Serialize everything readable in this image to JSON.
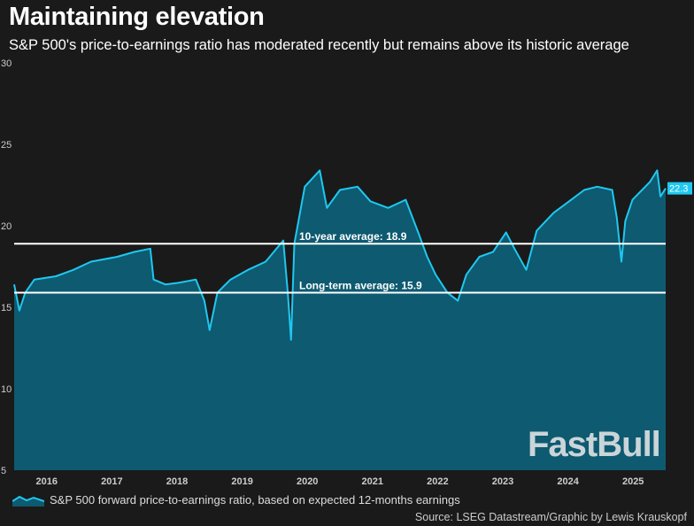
{
  "title": "Maintaining elevation",
  "subtitle": "S&P 500's price-to-earnings ratio has moderated recently but remains above its historic average",
  "legend_label": "S&P 500 forward price-to-earnings ratio, based on expected 12-months earnings",
  "source": "Source: LSEG Datastream/Graphic by Lewis Krauskopf",
  "watermark": "FastBull",
  "colors": {
    "line": "#1fc8f0",
    "fill": "#0e5a70",
    "ref": "#ffffff",
    "bg": "#1a1a1a"
  },
  "chart_data": {
    "type": "area",
    "title": "Maintaining elevation",
    "xlabel": "",
    "ylabel": "",
    "xlim": [
      2016.0,
      2026.0
    ],
    "ylim": [
      5,
      30
    ],
    "yticks": [
      5,
      10,
      15,
      20,
      25,
      30
    ],
    "xticks": [
      {
        "label": "2016",
        "value": 2016.5
      },
      {
        "label": "2017",
        "value": 2017.5
      },
      {
        "label": "2018",
        "value": 2018.5
      },
      {
        "label": "2019",
        "value": 2019.5
      },
      {
        "label": "2020",
        "value": 2020.5
      },
      {
        "label": "2021",
        "value": 2021.5
      },
      {
        "label": "2022",
        "value": 2022.5
      },
      {
        "label": "2023",
        "value": 2023.5
      },
      {
        "label": "2024",
        "value": 2024.5
      },
      {
        "label": "2025",
        "value": 2025.5
      }
    ],
    "series": [
      {
        "name": "S&P 500 forward price-to-earnings ratio, based on expected 12-months earnings",
        "x": [
          2016.0,
          2016.08,
          2016.17,
          2016.31,
          2016.64,
          2016.91,
          2017.18,
          2017.58,
          2017.85,
          2018.09,
          2018.14,
          2018.32,
          2018.52,
          2018.79,
          2018.92,
          2019.0,
          2019.12,
          2019.32,
          2019.59,
          2019.86,
          2020.13,
          2020.2,
          2020.25,
          2020.3,
          2020.46,
          2020.69,
          2020.8,
          2021.0,
          2021.27,
          2021.47,
          2021.74,
          2022.01,
          2022.21,
          2022.34,
          2022.47,
          2022.65,
          2022.81,
          2022.94,
          2023.14,
          2023.35,
          2023.55,
          2023.68,
          2023.86,
          2024.02,
          2024.28,
          2024.55,
          2024.75,
          2024.95,
          2025.18,
          2025.25,
          2025.32,
          2025.38,
          2025.49,
          2025.76,
          2025.87,
          2025.92,
          2026.0
        ],
        "y": [
          16.4,
          14.8,
          15.9,
          16.7,
          16.9,
          17.3,
          17.8,
          18.1,
          18.4,
          18.6,
          16.7,
          16.4,
          16.5,
          16.7,
          15.4,
          13.6,
          15.9,
          16.7,
          17.3,
          17.8,
          19.1,
          15.9,
          13.0,
          18.9,
          22.4,
          23.4,
          21.1,
          22.2,
          22.4,
          21.5,
          21.1,
          21.6,
          19.5,
          18.1,
          17.0,
          15.9,
          15.4,
          17.0,
          18.1,
          18.4,
          19.6,
          18.6,
          17.3,
          19.7,
          20.8,
          21.6,
          22.2,
          22.4,
          22.2,
          20.5,
          17.8,
          20.3,
          21.6,
          22.7,
          23.4,
          21.8,
          22.3
        ]
      }
    ],
    "reference_lines": [
      {
        "label": "10-year average: 18.9",
        "value": 18.9
      },
      {
        "label": "Long-term average: 15.9",
        "value": 15.9
      }
    ],
    "last_value_label": "22.3",
    "grid": false
  }
}
